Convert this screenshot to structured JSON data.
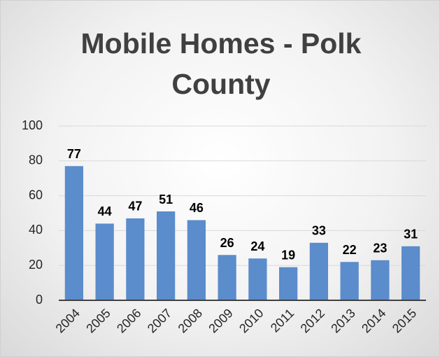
{
  "chart_data": {
    "type": "bar",
    "title": "Mobile Homes - Polk County",
    "categories": [
      "2004",
      "2005",
      "2006",
      "2007",
      "2008",
      "2009",
      "2010",
      "2011",
      "2012",
      "2013",
      "2014",
      "2015"
    ],
    "values": [
      77,
      44,
      47,
      51,
      46,
      26,
      24,
      19,
      33,
      22,
      23,
      31
    ],
    "color": "#5b8ccc",
    "ylim": [
      0,
      100
    ],
    "yticks": [
      0,
      20,
      40,
      60,
      80,
      100
    ],
    "grid": true
  }
}
